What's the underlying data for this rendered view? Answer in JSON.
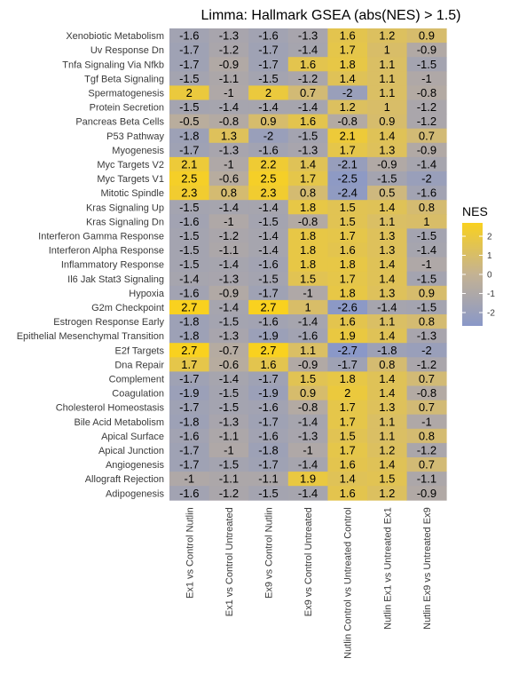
{
  "chart_data": {
    "type": "heatmap",
    "title": "Limma: Hallmark GSEA (abs(NES) > 1.5)",
    "xlabel": "",
    "ylabel": "",
    "columns": [
      "Ex1 vs Control Nutlin",
      "Ex1 vs Control Untreated",
      "Ex9 vs Control Nutlin",
      "Ex9 vs Control Untreated",
      "Nutlin Control vs Untreated Control",
      "Nutlin Ex1 vs Untreated Ex1",
      "Nutlin Ex9 vs Untreated Ex9"
    ],
    "rows": [
      "Xenobiotic Metabolism",
      "Uv Response Dn",
      "Tnfa Signaling Via Nfkb",
      "Tgf Beta Signaling",
      "Spermatogenesis",
      "Protein Secretion",
      "Pancreas Beta Cells",
      "P53 Pathway",
      "Myogenesis",
      "Myc Targets V2",
      "Myc Targets V1",
      "Mitotic Spindle",
      "Kras Signaling Up",
      "Kras Signaling Dn",
      "Interferon Gamma Response",
      "Interferon Alpha Response",
      "Inflammatory Response",
      "Il6 Jak Stat3 Signaling",
      "Hypoxia",
      "G2m Checkpoint",
      "Estrogen Response Early",
      "Epithelial Mesenchymal Transition",
      "E2f Targets",
      "Dna Repair",
      "Complement",
      "Coagulation",
      "Cholesterol Homeostasis",
      "Bile Acid Metabolism",
      "Apical Surface",
      "Apical Junction",
      "Angiogenesis",
      "Allograft Rejection",
      "Adipogenesis"
    ],
    "values": [
      [
        -1.6,
        -1.3,
        -1.6,
        -1.3,
        1.6,
        1.2,
        0.9
      ],
      [
        -1.7,
        -1.2,
        -1.7,
        -1.4,
        1.7,
        1,
        -0.9
      ],
      [
        -1.7,
        -0.9,
        -1.7,
        1.6,
        1.8,
        1.1,
        -1.5
      ],
      [
        -1.5,
        -1.1,
        -1.5,
        -1.2,
        1.4,
        1.1,
        -1
      ],
      [
        2,
        -1,
        2,
        0.7,
        -2,
        1.1,
        -0.8
      ],
      [
        -1.5,
        -1.4,
        -1.4,
        -1.4,
        1.2,
        1,
        -1.2
      ],
      [
        -0.5,
        -0.8,
        0.9,
        1.6,
        -0.8,
        0.9,
        -1.2
      ],
      [
        -1.8,
        1.3,
        -2,
        -1.5,
        2.1,
        1.4,
        0.7
      ],
      [
        -1.7,
        -1.3,
        -1.6,
        -1.3,
        1.7,
        1.3,
        -0.9
      ],
      [
        2.1,
        -1,
        2.2,
        1.4,
        -2.1,
        -0.9,
        -1.4
      ],
      [
        2.5,
        -0.6,
        2.5,
        1.7,
        -2.5,
        -1.5,
        -2
      ],
      [
        2.3,
        0.8,
        2.3,
        0.8,
        -2.4,
        0.5,
        -1.6
      ],
      [
        -1.5,
        -1.4,
        -1.4,
        1.8,
        1.5,
        1.4,
        0.8
      ],
      [
        -1.6,
        -1,
        -1.5,
        -0.8,
        1.5,
        1.1,
        1
      ],
      [
        -1.5,
        -1.2,
        -1.4,
        1.8,
        1.7,
        1.3,
        -1.5
      ],
      [
        -1.5,
        -1.1,
        -1.4,
        1.8,
        1.6,
        1.3,
        -1.4
      ],
      [
        -1.5,
        -1.4,
        -1.6,
        1.8,
        1.8,
        1.4,
        -1
      ],
      [
        -1.4,
        -1.3,
        -1.5,
        1.5,
        1.7,
        1.4,
        -1.5
      ],
      [
        -1.6,
        -0.9,
        -1.7,
        -1,
        1.8,
        1.3,
        0.9
      ],
      [
        2.7,
        -1.4,
        2.7,
        1,
        -2.6,
        -1.4,
        -1.5
      ],
      [
        -1.8,
        -1.5,
        -1.6,
        -1.4,
        1.6,
        1.1,
        0.8
      ],
      [
        -1.8,
        -1.3,
        -1.9,
        -1.6,
        1.9,
        1.4,
        -1.3
      ],
      [
        2.7,
        -0.7,
        2.7,
        1.1,
        -2.7,
        -1.8,
        -2
      ],
      [
        1.7,
        -0.6,
        1.6,
        -0.9,
        -1.7,
        0.8,
        -1.2
      ],
      [
        -1.7,
        -1.4,
        -1.7,
        1.5,
        1.8,
        1.4,
        0.7
      ],
      [
        -1.9,
        -1.5,
        -1.9,
        0.9,
        2,
        1.4,
        -0.8
      ],
      [
        -1.7,
        -1.5,
        -1.6,
        -0.8,
        1.7,
        1.3,
        0.7
      ],
      [
        -1.8,
        -1.3,
        -1.7,
        -1.4,
        1.7,
        1.1,
        -1
      ],
      [
        -1.6,
        -1.1,
        -1.6,
        -1.3,
        1.5,
        1.1,
        0.8
      ],
      [
        -1.7,
        -1,
        -1.8,
        -1,
        1.7,
        1.2,
        -1.2
      ],
      [
        -1.7,
        -1.5,
        -1.7,
        -1.4,
        1.6,
        1.4,
        0.7
      ],
      [
        -1,
        -1.1,
        -1.1,
        1.9,
        1.4,
        1.5,
        -1.1
      ],
      [
        -1.6,
        -1.2,
        -1.5,
        -1.4,
        1.6,
        1.2,
        -0.9
      ]
    ],
    "color_scale": {
      "low": "#8a98c8",
      "mid": "#c4b293",
      "high": "#f9d11f",
      "domain": [
        -2.7,
        2.7
      ]
    },
    "legend": {
      "title": "NES",
      "ticks": [
        2,
        1,
        0,
        -1,
        -2
      ],
      "placement": "right"
    }
  }
}
